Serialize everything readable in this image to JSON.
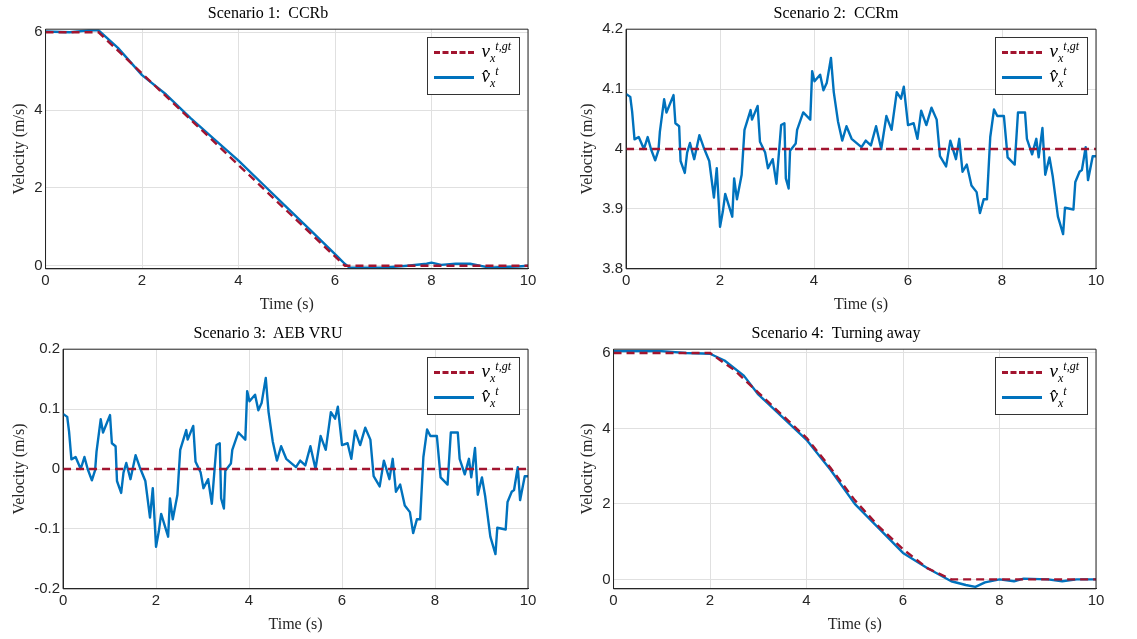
{
  "chart_data": [
    {
      "type": "line",
      "title": "Scenario 1:  CCRb",
      "xlabel": "Time (s)",
      "ylabel": "Velocity (m/s)",
      "xlim": [
        0,
        10
      ],
      "xticks": [
        0,
        2,
        4,
        6,
        8,
        10
      ],
      "ylim": [
        -0.08,
        6.08
      ],
      "yticks": [
        0,
        2,
        4,
        6
      ],
      "grid": true,
      "legend": "top right",
      "series": [
        {
          "name": "v$_{x}$$^{t,gt}$",
          "color": "#a2142f",
          "line_style": "dashed",
          "x": [
            0,
            1.1,
            6.2,
            10
          ],
          "values": [
            6,
            6,
            0,
            0
          ]
        },
        {
          "name": "v̂$_{x}$$^{t}$",
          "color": "#0072bd",
          "line_style": "solid",
          "x": [
            0,
            0.5,
            0.9,
            1.1,
            1.5,
            2,
            2.5,
            3,
            3.5,
            4,
            4.5,
            5,
            5.5,
            6,
            6.2,
            6.3,
            6.6,
            7,
            7.5,
            7.9,
            8,
            8.2,
            8.5,
            8.8,
            9,
            9.2,
            9.5,
            9.8,
            10
          ],
          "values": [
            6.02,
            6,
            6.05,
            6.05,
            5.6,
            4.9,
            4.4,
            3.8,
            3.25,
            2.7,
            2.1,
            1.5,
            0.9,
            0.3,
            0.05,
            -0.05,
            -0.05,
            -0.05,
            0,
            0.05,
            0.08,
            0.02,
            0.05,
            0.05,
            0,
            -0.05,
            -0.03,
            -0.02,
            0
          ]
        }
      ]
    },
    {
      "type": "line",
      "title": "Scenario 2:  CCRm",
      "xlabel": "Time (s)",
      "ylabel": "Velocity (m/s)",
      "xlim": [
        0,
        10
      ],
      "xticks": [
        0,
        2,
        4,
        6,
        8,
        10
      ],
      "ylim": [
        3.8,
        4.2
      ],
      "yticks": [
        3.8,
        3.9,
        4,
        4.1,
        4.2
      ],
      "grid": true,
      "legend": "top right",
      "series": [
        {
          "name": "v$_{x}$$^{t,gt}$",
          "color": "#a2142f",
          "line_style": "dashed",
          "x": [
            0,
            10
          ],
          "values": [
            4,
            4
          ]
        },
        {
          "name": "v̂$_{x}$$^{t}$",
          "color": "#0072bd",
          "line_style": "solid",
          "x": [
            0,
            0.09,
            0.13,
            0.18,
            0.27,
            0.38,
            0.46,
            0.53,
            0.62,
            0.69,
            0.72,
            0.81,
            0.86,
            1.01,
            1.05,
            1.13,
            1.16,
            1.25,
            1.3,
            1.36,
            1.45,
            1.56,
            1.65,
            1.77,
            1.87,
            1.93,
            1.97,
            2,
            2.06,
            2.11,
            2.26,
            2.3,
            2.36,
            2.46,
            2.52,
            2.65,
            2.68,
            2.8,
            2.85,
            2.96,
            3.02,
            3.12,
            3.2,
            3.3,
            3.37,
            3.4,
            3.46,
            3.49,
            3.61,
            3.64,
            3.77,
            3.92,
            3.96,
            4.01,
            4.13,
            4.2,
            4.27,
            4.36,
            4.42,
            4.51,
            4.6,
            4.69,
            4.8,
            4.92,
            5.01,
            5.1,
            5.21,
            5.32,
            5.43,
            5.54,
            5.65,
            5.76,
            5.85,
            5.91,
            6,
            6.12,
            6.2,
            6.28,
            6.39,
            6.5,
            6.61,
            6.68,
            6.81,
            6.9,
            7.02,
            7.09,
            7.16,
            7.25,
            7.35,
            7.46,
            7.53,
            7.61,
            7.68,
            7.75,
            7.83,
            7.9,
            8.04,
            8.12,
            8.27,
            8.34,
            8.49,
            8.53,
            8.64,
            8.73,
            8.78,
            8.86,
            8.92,
            9.01,
            9.08,
            9.19,
            9.3,
            9.34,
            9.52,
            9.56,
            9.65,
            9.7,
            9.78,
            9.83,
            9.93,
            10
          ],
          "values": [
            4.092,
            4.087,
            4.062,
            4.016,
            4.02,
            4,
            4.02,
            4,
            3.981,
            3.998,
            4.029,
            4.083,
            4.061,
            4.09,
            4.043,
            4.038,
            3.98,
            3.96,
            3.994,
            4.01,
            3.983,
            4.023,
            4.003,
            3.98,
            3.919,
            3.968,
            3.913,
            3.87,
            3.896,
            3.925,
            3.887,
            3.951,
            3.916,
            3.957,
            4.032,
            4.065,
            4.049,
            4.072,
            4.012,
            3.994,
            3.968,
            3.983,
            3.942,
            4.04,
            4.043,
            3.951,
            3.934,
            3.997,
            4.009,
            4.032,
            4.061,
            4.049,
            4.13,
            4.113,
            4.124,
            4.098,
            4.11,
            4.152,
            4.095,
            4.046,
            4.014,
            4.038,
            4.017,
            4.009,
            4.003,
            4.014,
            4.006,
            4.038,
            4,
            4.055,
            4.032,
            4.095,
            4.084,
            4.104,
            4.04,
            4.043,
            4.017,
            4.064,
            4.04,
            4.069,
            4.049,
            3.988,
            3.971,
            4.014,
            3.983,
            4.017,
            3.962,
            3.974,
            3.939,
            3.928,
            3.893,
            3.916,
            3.916,
            4.02,
            4.066,
            4.055,
            4.055,
            3.986,
            3.974,
            4.061,
            4.061,
            4.017,
            3.991,
            4.017,
            3.986,
            4.035,
            3.957,
            3.986,
            3.954,
            3.887,
            3.858,
            3.902,
            3.899,
            3.945,
            3.962,
            3.965,
            4.003,
            3.948,
            3.988,
            3.988
          ]
        }
      ]
    },
    {
      "type": "line",
      "title": "Scenario 3:  AEB VRU",
      "xlabel": "Time (s)",
      "ylabel": "Velocity (m/s)",
      "xlim": [
        0,
        10
      ],
      "xticks": [
        0,
        2,
        4,
        6,
        8,
        10
      ],
      "ylim": [
        -0.2,
        0.2
      ],
      "yticks": [
        -0.2,
        -0.1,
        0,
        0.1,
        0.2
      ],
      "grid": true,
      "legend": "top right",
      "series": [
        {
          "name": "v$_{x}$$^{t,gt}$",
          "color": "#a2142f",
          "line_style": "dashed",
          "x": [
            0,
            10
          ],
          "values": [
            0,
            0
          ]
        },
        {
          "name": "v̂$_{x}$$^{t}$",
          "color": "#0072bd",
          "line_style": "solid",
          "x": [
            0,
            0.09,
            0.13,
            0.18,
            0.27,
            0.38,
            0.46,
            0.53,
            0.62,
            0.69,
            0.72,
            0.81,
            0.86,
            1.01,
            1.05,
            1.13,
            1.16,
            1.25,
            1.3,
            1.36,
            1.45,
            1.56,
            1.65,
            1.77,
            1.87,
            1.93,
            1.97,
            2,
            2.06,
            2.11,
            2.26,
            2.3,
            2.36,
            2.46,
            2.52,
            2.65,
            2.68,
            2.8,
            2.85,
            2.96,
            3.02,
            3.12,
            3.2,
            3.3,
            3.37,
            3.4,
            3.46,
            3.49,
            3.61,
            3.64,
            3.77,
            3.92,
            3.96,
            4.01,
            4.13,
            4.2,
            4.27,
            4.36,
            4.42,
            4.51,
            4.6,
            4.69,
            4.8,
            4.92,
            5.01,
            5.1,
            5.21,
            5.32,
            5.43,
            5.54,
            5.65,
            5.76,
            5.85,
            5.91,
            6,
            6.12,
            6.2,
            6.28,
            6.39,
            6.5,
            6.61,
            6.68,
            6.81,
            6.9,
            7.02,
            7.09,
            7.16,
            7.25,
            7.35,
            7.46,
            7.53,
            7.61,
            7.68,
            7.75,
            7.83,
            7.9,
            8.04,
            8.12,
            8.27,
            8.34,
            8.49,
            8.53,
            8.64,
            8.73,
            8.78,
            8.86,
            8.92,
            9.01,
            9.08,
            9.19,
            9.3,
            9.34,
            9.52,
            9.56,
            9.65,
            9.7,
            9.78,
            9.83,
            9.93,
            10
          ],
          "values": [
            0.092,
            0.087,
            0.062,
            0.016,
            0.02,
            0,
            0.02,
            0,
            -0.019,
            -0.002,
            0.029,
            0.083,
            0.061,
            0.09,
            0.043,
            0.038,
            -0.02,
            -0.04,
            -0.006,
            0.01,
            -0.017,
            0.023,
            0.003,
            -0.02,
            -0.081,
            -0.032,
            -0.087,
            -0.13,
            -0.104,
            -0.075,
            -0.113,
            -0.049,
            -0.084,
            -0.043,
            0.032,
            0.065,
            0.049,
            0.072,
            0.012,
            -0.006,
            -0.032,
            -0.017,
            -0.058,
            0.04,
            0.043,
            -0.049,
            -0.066,
            -0.003,
            0.009,
            0.032,
            0.061,
            0.049,
            0.13,
            0.113,
            0.124,
            0.098,
            0.11,
            0.152,
            0.095,
            0.046,
            0.014,
            0.038,
            0.017,
            0.009,
            0.003,
            0.014,
            0.006,
            0.038,
            0,
            0.055,
            0.032,
            0.095,
            0.084,
            0.104,
            0.04,
            0.043,
            0.017,
            0.064,
            0.04,
            0.069,
            0.049,
            -0.012,
            -0.029,
            0.014,
            -0.017,
            0.017,
            -0.038,
            -0.026,
            -0.061,
            -0.072,
            -0.107,
            -0.084,
            -0.084,
            0.02,
            0.066,
            0.055,
            0.055,
            -0.014,
            -0.026,
            0.061,
            0.061,
            0.017,
            -0.009,
            0.017,
            -0.014,
            0.035,
            -0.043,
            -0.014,
            -0.046,
            -0.113,
            -0.142,
            -0.098,
            -0.101,
            -0.055,
            -0.038,
            -0.035,
            0.003,
            -0.052,
            -0.012,
            -0.012
          ]
        }
      ]
    },
    {
      "type": "line",
      "title": "Scenario 4:  Turning away",
      "xlabel": "Time (s)",
      "ylabel": "Velocity (m/s)",
      "xlim": [
        0,
        10
      ],
      "xticks": [
        0,
        2,
        4,
        6,
        8,
        10
      ],
      "ylim": [
        -0.25,
        6.1
      ],
      "yticks": [
        0,
        2,
        4,
        6
      ],
      "grid": true,
      "legend": "top right",
      "series": [
        {
          "name": "v$_{x}$$^{t,gt}$",
          "color": "#a2142f",
          "line_style": "dashed",
          "x": [
            0,
            2,
            2.5,
            3,
            3.5,
            4,
            4.5,
            5,
            5.5,
            6,
            6.5,
            7,
            10
          ],
          "values": [
            6,
            6,
            5.55,
            4.95,
            4.35,
            3.75,
            2.95,
            2.1,
            1.4,
            0.8,
            0.3,
            0,
            0
          ]
        },
        {
          "name": "v̂$_{x}$$^{t}$",
          "color": "#0072bd",
          "line_style": "solid",
          "x": [
            0,
            1,
            1.5,
            2,
            2.3,
            2.7,
            3,
            3.5,
            4,
            4.5,
            5,
            5.5,
            6,
            6.5,
            7,
            7.3,
            7.5,
            7.7,
            8,
            8.3,
            8.5,
            9,
            9.3,
            9.6,
            10
          ],
          "values": [
            6.05,
            6.05,
            6,
            5.98,
            5.8,
            5.4,
            4.9,
            4.3,
            3.7,
            2.9,
            2,
            1.35,
            0.7,
            0.3,
            -0.05,
            -0.15,
            -0.2,
            -0.08,
            0,
            -0.05,
            0.02,
            0,
            -0.05,
            0,
            0
          ]
        }
      ]
    }
  ]
}
